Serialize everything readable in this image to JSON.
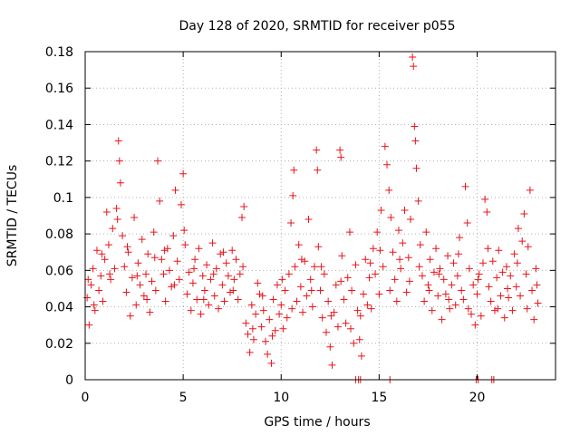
{
  "chart_data": {
    "type": "scatter",
    "title": "Day 128 of 2020, SRMTID for receiver p055",
    "xlabel": "GPS time / hours",
    "ylabel": "SRMTID / TECUs",
    "xlim": [
      0,
      24
    ],
    "ylim": [
      0,
      0.18
    ],
    "xticks": [
      0,
      5,
      10,
      15,
      20
    ],
    "xtick_labels": [
      "0",
      "5",
      "10",
      "15",
      "20"
    ],
    "yticks": [
      0,
      0.02,
      0.04,
      0.06,
      0.08,
      0.1,
      0.12,
      0.14,
      0.16,
      0.18
    ],
    "ytick_labels": [
      "0",
      "0.02",
      "0.04",
      "0.06",
      "0.08",
      "0.1",
      "0.12",
      "0.14",
      "0.16",
      "0.18"
    ],
    "grid": true,
    "marker": "+",
    "color": "#e8141b",
    "series": [
      {
        "name": "SRMTID",
        "points": [
          [
            0.1,
            0.045
          ],
          [
            0.2,
            0.03
          ],
          [
            0.3,
            0.052
          ],
          [
            0.4,
            0.061
          ],
          [
            0.5,
            0.038
          ],
          [
            0.6,
            0.071
          ],
          [
            0.7,
            0.049
          ],
          [
            0.8,
            0.057
          ],
          [
            0.9,
            0.043
          ],
          [
            1.0,
            0.066
          ],
          [
            1.1,
            0.092
          ],
          [
            1.2,
            0.074
          ],
          [
            1.3,
            0.055
          ],
          [
            1.4,
            0.083
          ],
          [
            1.5,
            0.061
          ],
          [
            1.6,
            0.094
          ],
          [
            1.7,
            0.131
          ],
          [
            1.75,
            0.12
          ],
          [
            1.8,
            0.108
          ],
          [
            1.9,
            0.079
          ],
          [
            2.0,
            0.062
          ],
          [
            2.1,
            0.048
          ],
          [
            2.2,
            0.07
          ],
          [
            2.3,
            0.035
          ],
          [
            2.4,
            0.056
          ],
          [
            2.5,
            0.089
          ],
          [
            2.6,
            0.041
          ],
          [
            2.7,
            0.064
          ],
          [
            2.8,
            0.052
          ],
          [
            2.9,
            0.077
          ],
          [
            3.0,
            0.046
          ],
          [
            3.1,
            0.058
          ],
          [
            3.2,
            0.069
          ],
          [
            3.3,
            0.037
          ],
          [
            3.4,
            0.054
          ],
          [
            3.5,
            0.081
          ],
          [
            3.6,
            0.049
          ],
          [
            3.7,
            0.12
          ],
          [
            3.8,
            0.098
          ],
          [
            3.9,
            0.066
          ],
          [
            4.0,
            0.058
          ],
          [
            4.1,
            0.043
          ],
          [
            4.2,
            0.072
          ],
          [
            4.3,
            0.06
          ],
          [
            4.4,
            0.051
          ],
          [
            4.5,
            0.079
          ],
          [
            4.6,
            0.104
          ],
          [
            4.7,
            0.065
          ],
          [
            4.8,
            0.055
          ],
          [
            4.9,
            0.096
          ],
          [
            5.0,
            0.113
          ],
          [
            5.1,
            0.074
          ],
          [
            5.2,
            0.047
          ],
          [
            5.3,
            0.059
          ],
          [
            5.4,
            0.038
          ],
          [
            5.5,
            0.053
          ],
          [
            5.6,
            0.066
          ],
          [
            5.7,
            0.044
          ],
          [
            5.8,
            0.072
          ],
          [
            5.9,
            0.036
          ],
          [
            6.0,
            0.057
          ],
          [
            6.1,
            0.049
          ],
          [
            6.2,
            0.063
          ],
          [
            6.3,
            0.041
          ],
          [
            6.4,
            0.055
          ],
          [
            6.5,
            0.075
          ],
          [
            6.6,
            0.046
          ],
          [
            6.7,
            0.061
          ],
          [
            6.8,
            0.039
          ],
          [
            6.9,
            0.069
          ],
          [
            7.0,
            0.052
          ],
          [
            7.1,
            0.043
          ],
          [
            7.2,
            0.064
          ],
          [
            7.3,
            0.057
          ],
          [
            7.4,
            0.048
          ],
          [
            7.5,
            0.071
          ],
          [
            7.6,
            0.055
          ],
          [
            7.7,
            0.066
          ],
          [
            7.8,
            0.044
          ],
          [
            7.9,
            0.058
          ],
          [
            8.0,
            0.089
          ],
          [
            8.1,
            0.095
          ],
          [
            8.2,
            0.031
          ],
          [
            8.3,
            0.025
          ],
          [
            8.4,
            0.015
          ],
          [
            8.5,
            0.041
          ],
          [
            8.6,
            0.022
          ],
          [
            8.7,
            0.036
          ],
          [
            8.8,
            0.053
          ],
          [
            8.9,
            0.047
          ],
          [
            9.0,
            0.029
          ],
          [
            9.1,
            0.038
          ],
          [
            9.2,
            0.021
          ],
          [
            9.3,
            0.014
          ],
          [
            9.4,
            0.033
          ],
          [
            9.5,
            0.009
          ],
          [
            9.6,
            0.044
          ],
          [
            9.7,
            0.027
          ],
          [
            9.8,
            0.052
          ],
          [
            9.9,
            0.036
          ],
          [
            10.0,
            0.041
          ],
          [
            10.1,
            0.028
          ],
          [
            10.2,
            0.049
          ],
          [
            10.3,
            0.034
          ],
          [
            10.4,
            0.058
          ],
          [
            10.5,
            0.086
          ],
          [
            10.6,
            0.101
          ],
          [
            10.65,
            0.115
          ],
          [
            10.7,
            0.062
          ],
          [
            10.8,
            0.043
          ],
          [
            10.9,
            0.074
          ],
          [
            11.0,
            0.051
          ],
          [
            11.1,
            0.037
          ],
          [
            11.2,
            0.065
          ],
          [
            11.3,
            0.046
          ],
          [
            11.4,
            0.088
          ],
          [
            11.5,
            0.055
          ],
          [
            11.6,
            0.04
          ],
          [
            11.7,
            0.062
          ],
          [
            11.8,
            0.126
          ],
          [
            11.85,
            0.115
          ],
          [
            11.9,
            0.073
          ],
          [
            12.0,
            0.049
          ],
          [
            12.1,
            0.034
          ],
          [
            12.2,
            0.058
          ],
          [
            12.3,
            0.026
          ],
          [
            12.4,
            0.043
          ],
          [
            12.5,
            0.018
          ],
          [
            12.6,
            0.008
          ],
          [
            12.7,
            0.037
          ],
          [
            12.8,
            0.052
          ],
          [
            12.9,
            0.029
          ],
          [
            13.0,
            0.126
          ],
          [
            13.05,
            0.122
          ],
          [
            13.1,
            0.068
          ],
          [
            13.2,
            0.044
          ],
          [
            13.3,
            0.031
          ],
          [
            13.4,
            0.056
          ],
          [
            13.5,
            0.081
          ],
          [
            13.6,
            0.049
          ],
          [
            13.7,
            0.02
          ],
          [
            13.8,
            0.063
          ],
          [
            13.9,
            0.038
          ],
          [
            14.0,
            0.022
          ],
          [
            14.1,
            0.013
          ],
          [
            14.2,
            0.047
          ],
          [
            14.3,
            0.066
          ],
          [
            14.4,
            0.041
          ],
          [
            14.5,
            0.056
          ],
          [
            14.6,
            0.039
          ],
          [
            14.7,
            0.072
          ],
          [
            14.8,
            0.058
          ],
          [
            14.9,
            0.081
          ],
          [
            15.0,
            0.047
          ],
          [
            15.1,
            0.093
          ],
          [
            15.2,
            0.062
          ],
          [
            15.3,
            0.128
          ],
          [
            15.4,
            0.118
          ],
          [
            15.5,
            0.104
          ],
          [
            15.6,
            0.089
          ],
          [
            15.7,
            0.07
          ],
          [
            15.8,
            0.055
          ],
          [
            15.9,
            0.043
          ],
          [
            16.0,
            0.082
          ],
          [
            16.1,
            0.061
          ],
          [
            16.2,
            0.075
          ],
          [
            16.3,
            0.093
          ],
          [
            16.4,
            0.048
          ],
          [
            16.5,
            0.067
          ],
          [
            16.6,
            0.088
          ],
          [
            16.7,
            0.177
          ],
          [
            16.75,
            0.172
          ],
          [
            16.8,
            0.139
          ],
          [
            16.85,
            0.131
          ],
          [
            16.9,
            0.116
          ],
          [
            17.0,
            0.098
          ],
          [
            17.1,
            0.074
          ],
          [
            17.2,
            0.057
          ],
          [
            17.3,
            0.043
          ],
          [
            17.4,
            0.081
          ],
          [
            17.5,
            0.052
          ],
          [
            17.6,
            0.066
          ],
          [
            17.7,
            0.038
          ],
          [
            17.8,
            0.059
          ],
          [
            17.9,
            0.072
          ],
          [
            18.0,
            0.046
          ],
          [
            18.1,
            0.061
          ],
          [
            18.2,
            0.033
          ],
          [
            18.3,
            0.055
          ],
          [
            18.4,
            0.047
          ],
          [
            18.5,
            0.068
          ],
          [
            18.6,
            0.039
          ],
          [
            18.7,
            0.052
          ],
          [
            18.8,
            0.064
          ],
          [
            18.9,
            0.041
          ],
          [
            19.0,
            0.057
          ],
          [
            19.1,
            0.078
          ],
          [
            19.2,
            0.049
          ],
          [
            19.3,
            0.044
          ],
          [
            19.4,
            0.106
          ],
          [
            19.5,
            0.086
          ],
          [
            19.6,
            0.061
          ],
          [
            19.7,
            0.036
          ],
          [
            19.8,
            0.052
          ],
          [
            19.9,
            0.03
          ],
          [
            20.0,
            0.047
          ],
          [
            20.1,
            0.058
          ],
          [
            20.2,
            0.035
          ],
          [
            20.3,
            0.064
          ],
          [
            20.4,
            0.099
          ],
          [
            20.5,
            0.092
          ],
          [
            20.6,
            0.051
          ],
          [
            20.7,
            0.043
          ],
          [
            20.8,
            0.065
          ],
          [
            20.9,
            0.038
          ],
          [
            21.0,
            0.056
          ],
          [
            21.1,
            0.071
          ],
          [
            21.2,
            0.046
          ],
          [
            21.3,
            0.059
          ],
          [
            21.4,
            0.034
          ],
          [
            21.5,
            0.062
          ],
          [
            21.6,
            0.045
          ],
          [
            21.7,
            0.057
          ],
          [
            21.8,
            0.038
          ],
          [
            21.9,
            0.069
          ],
          [
            22.0,
            0.051
          ],
          [
            22.1,
            0.083
          ],
          [
            22.2,
            0.046
          ],
          [
            22.3,
            0.076
          ],
          [
            22.4,
            0.091
          ],
          [
            22.5,
            0.058
          ],
          [
            22.6,
            0.073
          ],
          [
            22.7,
            0.104
          ],
          [
            22.8,
            0.049
          ],
          [
            22.9,
            0.033
          ],
          [
            23.0,
            0.061
          ],
          [
            23.1,
            0.042
          ],
          [
            0.15,
            0.055
          ],
          [
            0.45,
            0.041
          ],
          [
            0.85,
            0.069
          ],
          [
            1.25,
            0.058
          ],
          [
            1.65,
            0.088
          ],
          [
            2.15,
            0.073
          ],
          [
            2.65,
            0.057
          ],
          [
            3.15,
            0.044
          ],
          [
            3.55,
            0.067
          ],
          [
            4.05,
            0.071
          ],
          [
            4.55,
            0.052
          ],
          [
            5.05,
            0.082
          ],
          [
            5.55,
            0.061
          ],
          [
            6.05,
            0.044
          ],
          [
            6.55,
            0.058
          ],
          [
            7.05,
            0.07
          ],
          [
            7.55,
            0.049
          ],
          [
            8.05,
            0.062
          ],
          [
            8.55,
            0.028
          ],
          [
            9.05,
            0.046
          ],
          [
            9.55,
            0.024
          ],
          [
            10.05,
            0.055
          ],
          [
            10.55,
            0.039
          ],
          [
            11.05,
            0.066
          ],
          [
            11.55,
            0.049
          ],
          [
            12.05,
            0.062
          ],
          [
            12.55,
            0.035
          ],
          [
            13.05,
            0.054
          ],
          [
            13.55,
            0.028
          ],
          [
            14.05,
            0.035
          ],
          [
            14.55,
            0.064
          ],
          [
            15.05,
            0.071
          ],
          [
            15.55,
            0.049
          ],
          [
            16.05,
            0.066
          ],
          [
            16.55,
            0.054
          ],
          [
            17.05,
            0.062
          ],
          [
            17.55,
            0.049
          ],
          [
            18.05,
            0.058
          ],
          [
            18.55,
            0.044
          ],
          [
            19.05,
            0.069
          ],
          [
            19.55,
            0.039
          ],
          [
            20.05,
            0.055
          ],
          [
            20.55,
            0.072
          ],
          [
            21.05,
            0.039
          ],
          [
            21.55,
            0.05
          ],
          [
            22.05,
            0.064
          ],
          [
            22.55,
            0.039
          ],
          [
            23.05,
            0.052
          ],
          [
            13.8,
            0.0
          ],
          [
            13.95,
            0.0
          ],
          [
            14.05,
            0.0
          ],
          [
            15.55,
            0.0
          ],
          [
            19.95,
            0.0
          ],
          [
            20.05,
            0.0
          ],
          [
            20.75,
            0.0
          ],
          [
            20.85,
            0.0
          ]
        ]
      }
    ]
  }
}
